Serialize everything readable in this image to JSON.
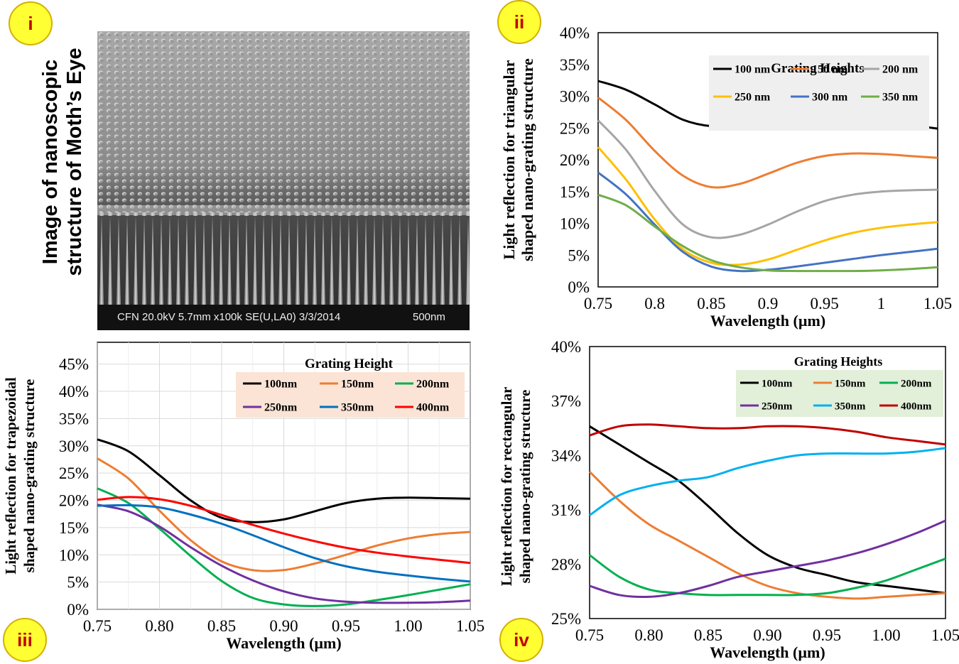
{
  "panel_i": {
    "badge": "i",
    "title_line1": "Image of  nanoscopic",
    "title_line2": "structure of Moth’s Eye",
    "caption_left": "CFN 20.0kV 5.7mm x100k SE(U,LA0) 3/3/2014",
    "caption_right": "500nm"
  },
  "badges": {
    "ii": "ii",
    "iii": "iii",
    "iv": "iv"
  },
  "chart_data": [
    {
      "id": "ii",
      "type": "line",
      "xlabel": "Wavelength (µm)",
      "ylabel_line1": "Light reflection for triangular",
      "ylabel_line2": "shaped nano-grating structure",
      "xlim": [
        0.75,
        1.05
      ],
      "ylim": [
        0,
        0.4
      ],
      "xticks": [
        "0.75",
        "0.8",
        "0.85",
        "0.9",
        "0.95",
        "1",
        "1.05"
      ],
      "xtick_values": [
        0.75,
        0.8,
        0.85,
        0.9,
        0.95,
        1.0,
        1.05
      ],
      "yticks": [
        "0%",
        "5%",
        "10%",
        "15%",
        "20%",
        "25%",
        "30%",
        "35%",
        "40%"
      ],
      "ytick_values": [
        0,
        0.05,
        0.1,
        0.15,
        0.2,
        0.25,
        0.3,
        0.35,
        0.4
      ],
      "grid": false,
      "legend": {
        "title": "Grating Heights",
        "placement": "top-right",
        "background": "#efefef"
      },
      "series": [
        {
          "name": "100 nm",
          "color": "#000000",
          "x": [
            0.75,
            0.775,
            0.8,
            0.825,
            0.85,
            0.875,
            0.9,
            0.925,
            0.95,
            0.975,
            1.0,
            1.025,
            1.05
          ],
          "y": [
            0.324,
            0.31,
            0.287,
            0.263,
            0.253,
            0.255,
            0.263,
            0.269,
            0.27,
            0.267,
            0.261,
            0.255,
            0.249
          ]
        },
        {
          "name": "150 nm",
          "color": "#ed7d31",
          "x": [
            0.75,
            0.775,
            0.8,
            0.825,
            0.85,
            0.875,
            0.9,
            0.925,
            0.95,
            0.975,
            1.0,
            1.025,
            1.05
          ],
          "y": [
            0.298,
            0.262,
            0.214,
            0.175,
            0.157,
            0.162,
            0.178,
            0.195,
            0.206,
            0.21,
            0.209,
            0.206,
            0.203
          ]
        },
        {
          "name": "200 nm",
          "color": "#a5a5a5",
          "x": [
            0.75,
            0.775,
            0.8,
            0.825,
            0.85,
            0.875,
            0.9,
            0.925,
            0.95,
            0.975,
            1.0,
            1.025,
            1.05
          ],
          "y": [
            0.262,
            0.215,
            0.151,
            0.098,
            0.078,
            0.082,
            0.098,
            0.118,
            0.135,
            0.145,
            0.15,
            0.152,
            0.153
          ]
        },
        {
          "name": "250 nm",
          "color": "#ffc000",
          "x": [
            0.75,
            0.775,
            0.8,
            0.825,
            0.85,
            0.875,
            0.9,
            0.925,
            0.95,
            0.975,
            1.0,
            1.025,
            1.05
          ],
          "y": [
            0.22,
            0.168,
            0.106,
            0.059,
            0.038,
            0.035,
            0.043,
            0.058,
            0.073,
            0.085,
            0.093,
            0.098,
            0.102
          ]
        },
        {
          "name": "300 nm",
          "color": "#4472c4",
          "x": [
            0.75,
            0.775,
            0.8,
            0.825,
            0.85,
            0.875,
            0.9,
            0.925,
            0.95,
            0.975,
            1.0,
            1.025,
            1.05
          ],
          "y": [
            0.18,
            0.145,
            0.098,
            0.055,
            0.032,
            0.025,
            0.027,
            0.032,
            0.038,
            0.044,
            0.05,
            0.055,
            0.06
          ]
        },
        {
          "name": "350 nm",
          "color": "#70ad47",
          "x": [
            0.75,
            0.775,
            0.8,
            0.825,
            0.85,
            0.875,
            0.9,
            0.925,
            0.95,
            0.975,
            1.0,
            1.025,
            1.05
          ],
          "y": [
            0.145,
            0.128,
            0.095,
            0.064,
            0.042,
            0.031,
            0.026,
            0.025,
            0.025,
            0.025,
            0.026,
            0.028,
            0.031
          ]
        }
      ]
    },
    {
      "id": "iii",
      "type": "line",
      "xlabel": "Wavelength (µm)",
      "ylabel_line1": "Light reflection for trapezoidal",
      "ylabel_line2": "shaped nano-grating structure",
      "xlim": [
        0.75,
        1.05
      ],
      "ylim": [
        0,
        0.49
      ],
      "xticks": [
        "0.75",
        "0.80",
        "0.85",
        "0.90",
        "0.95",
        "1.00",
        "1.05"
      ],
      "xtick_values": [
        0.75,
        0.8,
        0.85,
        0.9,
        0.95,
        1.0,
        1.05
      ],
      "yticks": [
        "0%",
        "5%",
        "10%",
        "15%",
        "20%",
        "25%",
        "30%",
        "35%",
        "40%",
        "45%"
      ],
      "ytick_values": [
        0,
        0.05,
        0.1,
        0.15,
        0.2,
        0.25,
        0.3,
        0.35,
        0.4,
        0.45
      ],
      "grid": true,
      "legend": {
        "title": "Grating Height",
        "placement": "top-right",
        "background": "#fbe4d5"
      },
      "series": [
        {
          "name": "100nm",
          "color": "#000000",
          "x": [
            0.75,
            0.775,
            0.8,
            0.825,
            0.85,
            0.875,
            0.9,
            0.925,
            0.95,
            0.975,
            1.0,
            1.025,
            1.05
          ],
          "y": [
            0.312,
            0.29,
            0.246,
            0.2,
            0.168,
            0.16,
            0.165,
            0.18,
            0.195,
            0.203,
            0.205,
            0.204,
            0.203
          ]
        },
        {
          "name": "150nm",
          "color": "#ed7d31",
          "x": [
            0.75,
            0.775,
            0.8,
            0.825,
            0.85,
            0.875,
            0.9,
            0.925,
            0.95,
            0.975,
            1.0,
            1.025,
            1.05
          ],
          "y": [
            0.277,
            0.24,
            0.181,
            0.127,
            0.088,
            0.072,
            0.072,
            0.084,
            0.1,
            0.117,
            0.13,
            0.138,
            0.142
          ]
        },
        {
          "name": "200nm",
          "color": "#00b050",
          "x": [
            0.75,
            0.775,
            0.8,
            0.825,
            0.85,
            0.875,
            0.9,
            0.925,
            0.95,
            0.975,
            1.0,
            1.025,
            1.05
          ],
          "y": [
            0.222,
            0.195,
            0.148,
            0.098,
            0.052,
            0.021,
            0.009,
            0.006,
            0.009,
            0.017,
            0.026,
            0.036,
            0.046
          ]
        },
        {
          "name": "250nm",
          "color": "#7030a0",
          "x": [
            0.75,
            0.775,
            0.8,
            0.825,
            0.85,
            0.875,
            0.9,
            0.925,
            0.95,
            0.975,
            1.0,
            1.025,
            1.05
          ],
          "y": [
            0.192,
            0.18,
            0.152,
            0.114,
            0.08,
            0.053,
            0.033,
            0.02,
            0.014,
            0.012,
            0.012,
            0.013,
            0.016
          ]
        },
        {
          "name": "350nm",
          "color": "#0070c0",
          "x": [
            0.75,
            0.775,
            0.8,
            0.825,
            0.85,
            0.875,
            0.9,
            0.925,
            0.95,
            0.975,
            1.0,
            1.025,
            1.05
          ],
          "y": [
            0.19,
            0.191,
            0.187,
            0.174,
            0.157,
            0.136,
            0.114,
            0.094,
            0.079,
            0.069,
            0.062,
            0.056,
            0.051
          ]
        },
        {
          "name": "400nm",
          "color": "#ff0000",
          "x": [
            0.75,
            0.775,
            0.8,
            0.825,
            0.85,
            0.875,
            0.9,
            0.925,
            0.95,
            0.975,
            1.0,
            1.025,
            1.05
          ],
          "y": [
            0.201,
            0.206,
            0.202,
            0.19,
            0.173,
            0.155,
            0.139,
            0.125,
            0.113,
            0.104,
            0.097,
            0.091,
            0.085
          ]
        }
      ]
    },
    {
      "id": "iv",
      "type": "line",
      "xlabel": "Wavelength (µm)",
      "ylabel_line1": "Light reflection for rectangular",
      "ylabel_line2": "shaped nano-grating structure",
      "xlim": [
        0.75,
        1.05
      ],
      "ylim": [
        0.25,
        0.4
      ],
      "xticks": [
        "0.75",
        "0.80",
        "0.85",
        "0.90",
        "0.95",
        "1.00",
        "1.05"
      ],
      "xtick_values": [
        0.75,
        0.8,
        0.85,
        0.9,
        0.95,
        1.0,
        1.05
      ],
      "yticks": [
        "25%",
        "28%",
        "31%",
        "34%",
        "37%",
        "40%"
      ],
      "ytick_values": [
        0.25,
        0.28,
        0.31,
        0.34,
        0.37,
        0.4
      ],
      "grid": false,
      "legend": {
        "title": "Grating Heights",
        "placement": "top-right",
        "background": "#e2efd9"
      },
      "series": [
        {
          "name": "100nm",
          "color": "#000000",
          "x": [
            0.75,
            0.775,
            0.8,
            0.825,
            0.85,
            0.875,
            0.9,
            0.925,
            0.95,
            0.975,
            1.0,
            1.025,
            1.05
          ],
          "y": [
            0.356,
            0.346,
            0.336,
            0.326,
            0.312,
            0.297,
            0.285,
            0.278,
            0.274,
            0.27,
            0.268,
            0.266,
            0.264
          ]
        },
        {
          "name": "150nm",
          "color": "#ed7d31",
          "x": [
            0.75,
            0.775,
            0.8,
            0.825,
            0.85,
            0.875,
            0.9,
            0.925,
            0.95,
            0.975,
            1.0,
            1.025,
            1.05
          ],
          "y": [
            0.331,
            0.315,
            0.302,
            0.293,
            0.284,
            0.275,
            0.268,
            0.264,
            0.262,
            0.261,
            0.262,
            0.263,
            0.264
          ]
        },
        {
          "name": "200nm",
          "color": "#00b050",
          "x": [
            0.75,
            0.775,
            0.8,
            0.825,
            0.85,
            0.875,
            0.9,
            0.925,
            0.95,
            0.975,
            1.0,
            1.025,
            1.05
          ],
          "y": [
            0.285,
            0.273,
            0.266,
            0.264,
            0.263,
            0.263,
            0.263,
            0.263,
            0.264,
            0.267,
            0.271,
            0.277,
            0.283
          ]
        },
        {
          "name": "250nm",
          "color": "#7030a0",
          "x": [
            0.75,
            0.775,
            0.8,
            0.825,
            0.85,
            0.875,
            0.9,
            0.925,
            0.95,
            0.975,
            1.0,
            1.025,
            1.05
          ],
          "y": [
            0.268,
            0.263,
            0.262,
            0.264,
            0.268,
            0.273,
            0.276,
            0.279,
            0.282,
            0.286,
            0.291,
            0.297,
            0.304
          ]
        },
        {
          "name": "350nm",
          "color": "#00b0f0",
          "x": [
            0.75,
            0.775,
            0.8,
            0.825,
            0.85,
            0.875,
            0.9,
            0.925,
            0.95,
            0.975,
            1.0,
            1.025,
            1.05
          ],
          "y": [
            0.307,
            0.318,
            0.323,
            0.326,
            0.328,
            0.333,
            0.337,
            0.34,
            0.341,
            0.341,
            0.341,
            0.342,
            0.344
          ]
        },
        {
          "name": "400nm",
          "color": "#c00000",
          "x": [
            0.75,
            0.775,
            0.8,
            0.825,
            0.85,
            0.875,
            0.9,
            0.925,
            0.95,
            0.975,
            1.0,
            1.025,
            1.05
          ],
          "y": [
            0.351,
            0.356,
            0.357,
            0.356,
            0.355,
            0.355,
            0.356,
            0.356,
            0.355,
            0.353,
            0.35,
            0.348,
            0.346
          ]
        }
      ]
    }
  ]
}
